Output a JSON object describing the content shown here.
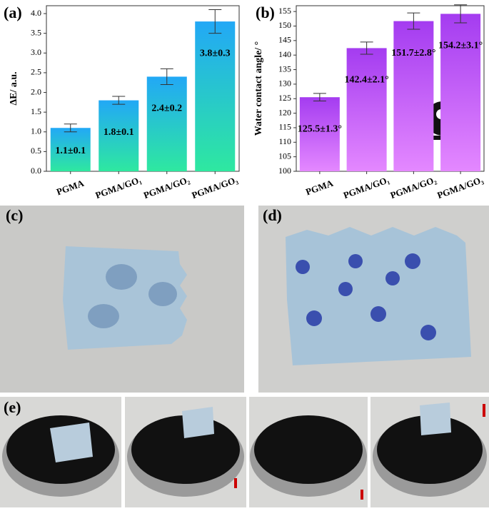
{
  "chart_data": [
    {
      "type": "bar",
      "title": "(a)",
      "y_label": "ΔE/ a.u.",
      "categories": [
        "PGMA",
        "PGMA/GO₁",
        "PGMA/GO₂",
        "PGMA/GO₃"
      ],
      "values": [
        1.1,
        1.8,
        2.4,
        3.8
      ],
      "errors": [
        0.1,
        0.1,
        0.2,
        0.3
      ],
      "value_labels": [
        "1.1±0.1",
        "1.8±0.1",
        "2.4±0.2",
        "3.8±0.3"
      ],
      "gradient": [
        "#22a8f6",
        "#2ee8a0"
      ],
      "ylim": [
        0,
        4.2
      ],
      "yticks": [
        {
          "value": 0,
          "label": "0.0"
        },
        0.5,
        {
          "value": 1,
          "label": "1.0"
        },
        1.5,
        {
          "value": 2,
          "label": "2.0"
        },
        2.5,
        {
          "value": 3,
          "label": "3.0"
        },
        3.5,
        {
          "value": 4,
          "label": "4.0"
        }
      ]
    },
    {
      "type": "bar",
      "title": "(b)",
      "y_label": "Water contact angle/ °",
      "categories": [
        "PGMA",
        "PGMA/GO₁",
        "PGMA/GO₂",
        "PGMA/GO₃"
      ],
      "values": [
        125.5,
        142.4,
        151.7,
        154.2
      ],
      "errors": [
        1.3,
        2.1,
        2.8,
        3.1
      ],
      "value_labels": [
        "125.5±1.3°",
        "142.4±2.1°",
        "151.7±2.8°",
        "154.2±3.1°"
      ],
      "gradient": [
        "#a43cf0",
        "#e488ff"
      ],
      "ylim": [
        100,
        157
      ],
      "yticks": [
        100,
        105,
        110,
        115,
        120,
        125,
        130,
        135,
        140,
        145,
        150,
        155
      ]
    }
  ],
  "panel_labels": [
    "(c)",
    "(d)",
    "(e)"
  ]
}
